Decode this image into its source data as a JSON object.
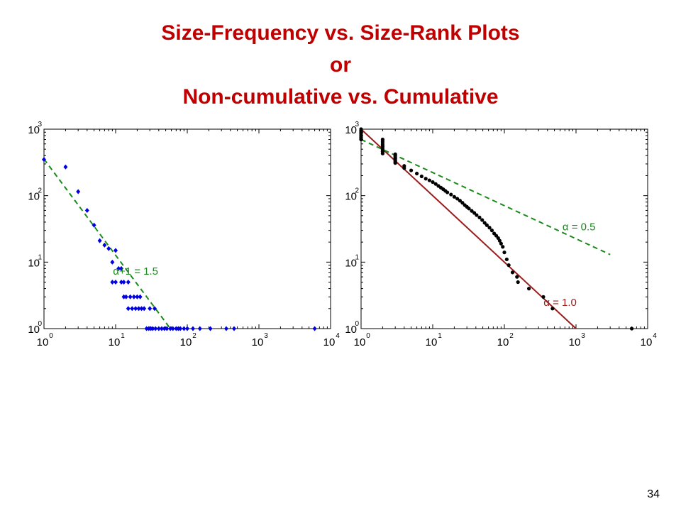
{
  "slide": {
    "title_lines": [
      "Size-Frequency vs. Size-Rank Plots",
      "or",
      "Non-cumulative vs. Cumulative"
    ],
    "page_number": "34"
  },
  "colors": {
    "title": "#c00000",
    "left_points": "#0000e0",
    "left_fit": "#1a8a1a",
    "right_points": "#000000",
    "right_fit_steep": "#9b1c1c",
    "right_fit_shallow": "#1a8a1a"
  },
  "chart_data": [
    {
      "type": "scatter",
      "title": "",
      "xlabel": "",
      "ylabel": "",
      "xscale": "log",
      "yscale": "log",
      "xlim": [
        1,
        10000
      ],
      "ylim": [
        1,
        1000
      ],
      "x_ticks": [
        {
          "base": "10",
          "exp": "0"
        },
        {
          "base": "10",
          "exp": "1"
        },
        {
          "base": "10",
          "exp": "2"
        },
        {
          "base": "10",
          "exp": "3"
        },
        {
          "base": "10",
          "exp": "4"
        }
      ],
      "y_ticks": [
        {
          "base": "10",
          "exp": "0"
        },
        {
          "base": "10",
          "exp": "1"
        },
        {
          "base": "10",
          "exp": "2"
        },
        {
          "base": "10",
          "exp": "3"
        }
      ],
      "grid": false,
      "series": [
        {
          "marker": "diamond",
          "color": "#0000e0",
          "points": [
            [
              1,
              350
            ],
            [
              2,
              270
            ],
            [
              3,
              115
            ],
            [
              4,
              60
            ],
            [
              5,
              36
            ],
            [
              6,
              21
            ],
            [
              7,
              18
            ],
            [
              8,
              16
            ],
            [
              9,
              10
            ],
            [
              10,
              15
            ],
            [
              11,
              8
            ],
            [
              12,
              8
            ],
            [
              9,
              5
            ],
            [
              10,
              5
            ],
            [
              12,
              5
            ],
            [
              13,
              5
            ],
            [
              15,
              5
            ],
            [
              13,
              3
            ],
            [
              14,
              3
            ],
            [
              16,
              3
            ],
            [
              18,
              3
            ],
            [
              20,
              3
            ],
            [
              22,
              3
            ],
            [
              15,
              2
            ],
            [
              17,
              2
            ],
            [
              19,
              2
            ],
            [
              21,
              2
            ],
            [
              23,
              2
            ],
            [
              25,
              2
            ],
            [
              30,
              2
            ],
            [
              35,
              2
            ],
            [
              27,
              1
            ],
            [
              29,
              1
            ],
            [
              31,
              1
            ],
            [
              33,
              1
            ],
            [
              36,
              1
            ],
            [
              40,
              1
            ],
            [
              44,
              1
            ],
            [
              48,
              1
            ],
            [
              52,
              1
            ],
            [
              58,
              1
            ],
            [
              63,
              1
            ],
            [
              70,
              1
            ],
            [
              75,
              1
            ],
            [
              80,
              1
            ],
            [
              90,
              1
            ],
            [
              100,
              1
            ],
            [
              120,
              1
            ],
            [
              150,
              1
            ],
            [
              210,
              1
            ],
            [
              350,
              1
            ],
            [
              450,
              1
            ],
            [
              6000,
              1
            ]
          ]
        }
      ],
      "fit_line": {
        "from": [
          1,
          355
        ],
        "to": [
          58,
          1
        ],
        "style": "dashed",
        "color": "#1a8a1a",
        "label": "α+1 = 1.5",
        "label_at": [
          19,
          6.5
        ]
      }
    },
    {
      "type": "scatter",
      "title": "",
      "xlabel": "",
      "ylabel": "",
      "xscale": "log",
      "yscale": "log",
      "xlim": [
        1,
        10000
      ],
      "ylim": [
        1,
        1000
      ],
      "x_ticks": [
        {
          "base": "10",
          "exp": "0"
        },
        {
          "base": "10",
          "exp": "1"
        },
        {
          "base": "10",
          "exp": "2"
        },
        {
          "base": "10",
          "exp": "3"
        },
        {
          "base": "10",
          "exp": "4"
        }
      ],
      "y_ticks": [
        {
          "base": "10",
          "exp": "0"
        },
        {
          "base": "10",
          "exp": "1"
        },
        {
          "base": "10",
          "exp": "2"
        },
        {
          "base": "10",
          "exp": "3"
        }
      ],
      "grid": false,
      "series": [
        {
          "marker": "circle",
          "color": "#000000",
          "points": [
            [
              1,
              1000
            ],
            [
              1,
              950
            ],
            [
              1,
              900
            ],
            [
              1,
              850
            ],
            [
              1,
              800
            ],
            [
              1,
              760
            ],
            [
              1,
              720
            ],
            [
              1,
              700
            ],
            [
              2,
              700
            ],
            [
              2,
              660
            ],
            [
              2,
              620
            ],
            [
              2,
              580
            ],
            [
              2,
              550
            ],
            [
              2,
              520
            ],
            [
              2,
              490
            ],
            [
              2,
              460
            ],
            [
              2,
              430
            ],
            [
              3,
              420
            ],
            [
              3,
              400
            ],
            [
              3,
              380
            ],
            [
              3,
              360
            ],
            [
              3,
              340
            ],
            [
              3,
              325
            ],
            [
              3,
              310
            ],
            [
              4,
              280
            ],
            [
              4,
              260
            ],
            [
              5,
              240
            ],
            [
              6,
              215
            ],
            [
              7,
              195
            ],
            [
              8,
              180
            ],
            [
              9,
              170
            ],
            [
              10,
              160
            ],
            [
              11,
              150
            ],
            [
              12,
              140
            ],
            [
              13,
              132
            ],
            [
              14,
              125
            ],
            [
              15,
              118
            ],
            [
              16,
              112
            ],
            [
              18,
              104
            ],
            [
              20,
              96
            ],
            [
              22,
              90
            ],
            [
              24,
              84
            ],
            [
              26,
              78
            ],
            [
              28,
              72
            ],
            [
              30,
              68
            ],
            [
              32,
              64
            ],
            [
              35,
              59
            ],
            [
              38,
              55
            ],
            [
              41,
              51
            ],
            [
              45,
              47
            ],
            [
              49,
              43
            ],
            [
              53,
              39
            ],
            [
              57,
              36
            ],
            [
              62,
              33
            ],
            [
              67,
              30
            ],
            [
              72,
              27
            ],
            [
              77,
              25
            ],
            [
              82,
              23
            ],
            [
              86,
              21
            ],
            [
              90,
              19
            ],
            [
              95,
              17
            ],
            [
              100,
              14
            ],
            [
              108,
              11
            ],
            [
              115,
              9
            ],
            [
              130,
              7
            ],
            [
              150,
              6
            ],
            [
              155,
              5
            ],
            [
              220,
              4
            ],
            [
              350,
              3
            ],
            [
              470,
              2
            ],
            [
              6000,
              1
            ]
          ]
        }
      ],
      "fit_lines": [
        {
          "from": [
            1,
            1000
          ],
          "to": [
            1000,
            1
          ],
          "style": "solid",
          "color": "#9b1c1c",
          "label": "α = 1.0",
          "label_at": [
            600,
            2.2
          ]
        },
        {
          "from": [
            1,
            700
          ],
          "to": [
            3000,
            13
          ],
          "style": "dashed",
          "color": "#1a8a1a",
          "label": "α = 0.5",
          "label_at": [
            1100,
            30
          ]
        }
      ]
    }
  ]
}
